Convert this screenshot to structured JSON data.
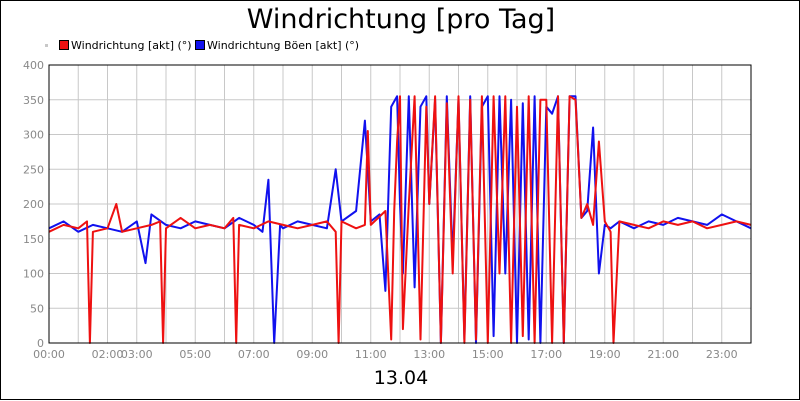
{
  "chart_data": {
    "type": "line",
    "title": "Windrichtung [pro Tag]",
    "xlabel": "13.04",
    "ylabel": "",
    "x_ticks": [
      "00:00",
      "02:00",
      "03:00",
      "05:00",
      "07:00",
      "09:00",
      "11:00",
      "13:00",
      "15:00",
      "17:00",
      "19:00",
      "21:00",
      "23:00"
    ],
    "y_ticks": [
      0,
      50,
      100,
      150,
      200,
      250,
      300,
      350,
      400
    ],
    "ylim": [
      0,
      400
    ],
    "xlim_hours": [
      0,
      24
    ],
    "grid": true,
    "legend_position": "top-left",
    "series": [
      {
        "name": "Windrichtung [akt] (°)",
        "color": "#ee1111",
        "hours": [
          0,
          0.5,
          1,
          1.3,
          1.4,
          1.5,
          2,
          2.3,
          2.5,
          3,
          3.5,
          3.8,
          3.9,
          4,
          4.5,
          5,
          5.5,
          6,
          6.3,
          6.4,
          6.5,
          7,
          7.5,
          8,
          8.5,
          9,
          9.5,
          9.8,
          9.9,
          10,
          10.5,
          10.8,
          10.9,
          11,
          11.5,
          11.7,
          11.8,
          11.9,
          12,
          12.1,
          12.3,
          12.5,
          12.7,
          12.9,
          13,
          13.2,
          13.4,
          13.6,
          13.8,
          14,
          14.2,
          14.4,
          14.6,
          14.8,
          15,
          15.2,
          15.4,
          15.6,
          15.8,
          16,
          16.2,
          16.4,
          16.6,
          16.8,
          17,
          17.2,
          17.4,
          17.6,
          17.8,
          18,
          18.2,
          18.4,
          18.6,
          18.8,
          19,
          19.2,
          19.3,
          19.5,
          20,
          20.5,
          21,
          21.5,
          22,
          22.5,
          23,
          23.5,
          24
        ],
        "values": [
          160,
          170,
          165,
          175,
          0,
          160,
          165,
          200,
          160,
          165,
          170,
          175,
          0,
          165,
          180,
          165,
          170,
          165,
          180,
          0,
          170,
          165,
          175,
          170,
          165,
          170,
          175,
          160,
          0,
          175,
          165,
          170,
          305,
          170,
          190,
          5,
          190,
          290,
          355,
          20,
          200,
          355,
          5,
          340,
          200,
          355,
          0,
          345,
          100,
          355,
          0,
          350,
          5,
          355,
          0,
          355,
          100,
          355,
          0,
          340,
          10,
          355,
          0,
          350,
          350,
          0,
          355,
          0,
          355,
          350,
          180,
          200,
          170,
          290,
          175,
          160,
          0,
          175,
          170,
          165,
          175,
          170,
          175,
          165,
          170,
          175,
          170
        ]
      },
      {
        "name": "Windrichtung Böen [akt] (°)",
        "color": "#1111ee",
        "hours": [
          0,
          0.5,
          1,
          1.5,
          2,
          2.5,
          3,
          3.3,
          3.5,
          4,
          4.5,
          5,
          5.5,
          6,
          6.5,
          7,
          7.3,
          7.5,
          7.7,
          7.9,
          8,
          8.5,
          9,
          9.5,
          9.8,
          10,
          10.5,
          10.8,
          11,
          11.3,
          11.5,
          11.7,
          11.9,
          12,
          12.1,
          12.3,
          12.5,
          12.7,
          12.9,
          13,
          13.2,
          13.4,
          13.6,
          13.8,
          14,
          14.2,
          14.4,
          14.6,
          14.8,
          15,
          15.2,
          15.4,
          15.6,
          15.8,
          16,
          16.2,
          16.4,
          16.6,
          16.8,
          17,
          17.2,
          17.4,
          17.6,
          17.8,
          18,
          18.2,
          18.4,
          18.6,
          18.8,
          19,
          19.2,
          19.5,
          20,
          20.5,
          21,
          21.5,
          22,
          22.5,
          23,
          23.5,
          24
        ],
        "values": [
          165,
          175,
          160,
          170,
          165,
          160,
          175,
          115,
          185,
          170,
          165,
          175,
          170,
          165,
          180,
          170,
          160,
          235,
          0,
          170,
          165,
          175,
          170,
          165,
          250,
          175,
          190,
          320,
          175,
          185,
          75,
          340,
          355,
          200,
          100,
          355,
          80,
          340,
          355,
          200,
          350,
          0,
          355,
          120,
          350,
          5,
          355,
          0,
          340,
          355,
          10,
          355,
          100,
          350,
          0,
          345,
          5,
          355,
          0,
          340,
          330,
          355,
          0,
          355,
          355,
          180,
          190,
          310,
          100,
          170,
          165,
          175,
          165,
          175,
          170,
          180,
          175,
          170,
          185,
          175,
          165
        ]
      }
    ]
  }
}
